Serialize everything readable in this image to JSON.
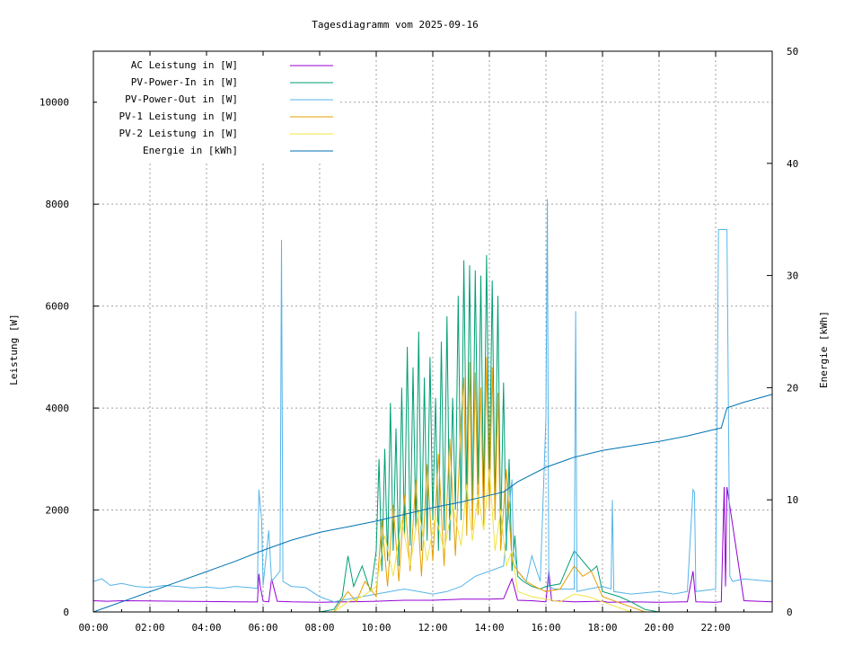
{
  "chart_data": {
    "type": "line",
    "title": "Tagesdiagramm vom 2025-09-16",
    "ylabel": "Leistung [W]",
    "y2label": "Energie [kWh]",
    "xlabel": "",
    "ylim": [
      0,
      11000
    ],
    "y2lim": [
      0,
      50
    ],
    "xlim": [
      0,
      24
    ],
    "x_unit": "hour",
    "grid": true,
    "legend_position": "top-left",
    "x_ticks": [
      "00:00",
      "02:00",
      "04:00",
      "06:00",
      "08:00",
      "10:00",
      "12:00",
      "14:00",
      "16:00",
      "18:00",
      "20:00",
      "22:00"
    ],
    "y_ticks": [
      0,
      2000,
      4000,
      6000,
      8000,
      10000
    ],
    "y2_ticks": [
      0,
      10,
      20,
      30,
      40,
      50
    ],
    "series": [
      {
        "name": "AC Leistung in [W]",
        "color": "#9400d3",
        "axis": "y",
        "x": [
          0,
          0.5,
          1,
          2,
          3,
          4,
          5,
          5.8,
          5.85,
          5.9,
          6,
          6.2,
          6.3,
          6.5,
          7,
          8,
          9,
          10,
          10.5,
          11,
          12,
          12.5,
          13,
          14,
          14.5,
          14.8,
          15,
          15.5,
          16,
          16.1,
          16.2,
          17,
          18,
          18.2,
          19,
          20,
          21,
          21.2,
          21.3,
          22,
          22.2,
          22.3,
          22.35,
          22.4,
          23,
          24
        ],
        "y": [
          220,
          210,
          220,
          215,
          210,
          205,
          200,
          195,
          750,
          500,
          210,
          200,
          650,
          210,
          200,
          190,
          200,
          210,
          220,
          230,
          230,
          240,
          250,
          250,
          260,
          650,
          230,
          220,
          200,
          800,
          220,
          200,
          210,
          190,
          200,
          190,
          200,
          800,
          200,
          190,
          200,
          2450,
          500,
          2450,
          220,
          200
        ]
      },
      {
        "name": "PV-Power-In in [W]",
        "color": "#009e73",
        "axis": "y",
        "x": [
          8.0,
          8.5,
          8.8,
          9.0,
          9.2,
          9.5,
          9.8,
          10.0,
          10.1,
          10.2,
          10.3,
          10.4,
          10.5,
          10.6,
          10.7,
          10.8,
          10.9,
          11.0,
          11.1,
          11.2,
          11.3,
          11.4,
          11.5,
          11.6,
          11.7,
          11.8,
          11.9,
          12.0,
          12.1,
          12.2,
          12.3,
          12.4,
          12.5,
          12.6,
          12.7,
          12.8,
          12.9,
          13.0,
          13.1,
          13.2,
          13.3,
          13.4,
          13.5,
          13.6,
          13.7,
          13.8,
          13.9,
          14.0,
          14.1,
          14.2,
          14.3,
          14.4,
          14.5,
          14.6,
          14.7,
          14.8,
          14.9,
          15.0,
          15.2,
          15.5,
          15.8,
          16.0,
          16.5,
          17.0,
          17.3,
          17.6,
          17.8,
          18.0,
          18.3,
          18.6,
          19.0,
          19.5,
          20.0
        ],
        "y": [
          0,
          50,
          300,
          1100,
          500,
          900,
          400,
          1200,
          3000,
          800,
          3200,
          1000,
          4100,
          1200,
          3600,
          900,
          4400,
          1500,
          5200,
          1300,
          4800,
          1600,
          5500,
          1200,
          4600,
          1400,
          5000,
          1800,
          4200,
          1200,
          5300,
          1600,
          5800,
          1400,
          4200,
          2000,
          6200,
          1800,
          6900,
          2200,
          6800,
          1900,
          6700,
          2500,
          6600,
          2100,
          7000,
          2400,
          6500,
          2000,
          6200,
          1500,
          4500,
          1200,
          3000,
          800,
          1500,
          700,
          600,
          500,
          450,
          500,
          550,
          1200,
          1000,
          800,
          900,
          400,
          350,
          300,
          200,
          50,
          0
        ]
      },
      {
        "name": "PV-Power-Out in [W]",
        "color": "#56b4e9",
        "axis": "y",
        "x": [
          0,
          0.3,
          0.6,
          1,
          1.5,
          2,
          2.5,
          3,
          3.5,
          4,
          4.5,
          5,
          5.5,
          5.8,
          5.85,
          5.95,
          6.0,
          6.2,
          6.3,
          6.6,
          6.65,
          6.7,
          7,
          7.5,
          8,
          8.5,
          9,
          9.5,
          10,
          10.5,
          11,
          11.5,
          12,
          12.5,
          13,
          13.5,
          14,
          14.5,
          14.8,
          14.85,
          15,
          15.3,
          15.5,
          15.8,
          16.0,
          16.05,
          16.1,
          16.3,
          17.0,
          17.05,
          17.1,
          17.5,
          18.0,
          18.3,
          18.35,
          18.4,
          19,
          20,
          20.5,
          21,
          21.2,
          21.25,
          21.3,
          22,
          22.1,
          22.2,
          22.3,
          22.4,
          22.5,
          22.6,
          23,
          23.5,
          24
        ],
        "y": [
          600,
          650,
          520,
          560,
          500,
          480,
          520,
          500,
          470,
          490,
          460,
          500,
          480,
          460,
          2400,
          1800,
          520,
          1600,
          600,
          800,
          7300,
          600,
          500,
          480,
          300,
          200,
          250,
          300,
          350,
          400,
          450,
          400,
          350,
          400,
          500,
          700,
          800,
          900,
          2600,
          1200,
          800,
          600,
          1100,
          600,
          3800,
          8100,
          500,
          450,
          450,
          5900,
          400,
          450,
          500,
          450,
          2200,
          400,
          350,
          400,
          350,
          400,
          2400,
          2350,
          400,
          450,
          7500,
          7500,
          7500,
          7500,
          700,
          600,
          650,
          620,
          600
        ]
      },
      {
        "name": "PV-1 Leistung in [W]",
        "color": "#e69f00",
        "axis": "y",
        "x": [
          8.5,
          9.0,
          9.3,
          9.6,
          10.0,
          10.2,
          10.4,
          10.6,
          10.8,
          11.0,
          11.2,
          11.4,
          11.6,
          11.8,
          12.0,
          12.2,
          12.4,
          12.6,
          12.8,
          13.0,
          13.1,
          13.2,
          13.3,
          13.4,
          13.5,
          13.6,
          13.7,
          13.8,
          13.9,
          14.0,
          14.1,
          14.2,
          14.3,
          14.4,
          14.6,
          14.8,
          15.0,
          15.3,
          15.6,
          16.0,
          16.5,
          17.0,
          17.3,
          17.6,
          18.0,
          18.5,
          19.0,
          19.5
        ],
        "y": [
          0,
          400,
          200,
          600,
          300,
          1800,
          500,
          2100,
          600,
          2300,
          800,
          2600,
          700,
          2900,
          1000,
          3100,
          900,
          3400,
          1100,
          3800,
          4600,
          1500,
          4900,
          1600,
          4700,
          1900,
          4400,
          1700,
          5000,
          2000,
          4800,
          1800,
          4300,
          1200,
          2800,
          1000,
          800,
          600,
          500,
          400,
          450,
          900,
          700,
          800,
          300,
          200,
          100,
          0
        ]
      },
      {
        "name": "PV-2 Leistung in [W]",
        "color": "#f0e442",
        "axis": "y",
        "x": [
          8.5,
          9.0,
          9.5,
          10.0,
          10.3,
          10.6,
          10.9,
          11.2,
          11.5,
          11.8,
          12.1,
          12.4,
          12.7,
          13.0,
          13.2,
          13.4,
          13.6,
          13.8,
          14.0,
          14.2,
          14.4,
          14.6,
          14.8,
          15.0,
          15.5,
          16.0,
          16.5,
          17.0,
          17.5,
          18.0,
          18.5,
          19.0
        ],
        "y": [
          0,
          200,
          300,
          500,
          1500,
          700,
          1800,
          900,
          2000,
          1000,
          1900,
          1200,
          2100,
          1300,
          2500,
          1400,
          2300,
          1600,
          2800,
          1200,
          2000,
          900,
          1200,
          400,
          300,
          250,
          200,
          350,
          300,
          200,
          100,
          0
        ]
      },
      {
        "name": "Energie in [kWh]",
        "color": "#0072b2",
        "axis": "y2",
        "x": [
          0,
          1,
          2,
          3,
          4,
          5,
          6,
          7,
          8,
          9,
          10,
          11,
          12,
          13,
          14,
          14.5,
          15,
          16,
          17,
          18,
          19,
          20,
          21,
          22,
          22.2,
          22.4,
          23,
          24
        ],
        "y": [
          0,
          0.9,
          1.8,
          2.7,
          3.6,
          4.5,
          5.5,
          6.4,
          7.1,
          7.6,
          8.1,
          8.7,
          9.3,
          9.8,
          10.4,
          10.7,
          11.6,
          12.9,
          13.8,
          14.4,
          14.8,
          15.2,
          15.7,
          16.3,
          16.4,
          18.2,
          18.7,
          19.4
        ]
      }
    ]
  }
}
